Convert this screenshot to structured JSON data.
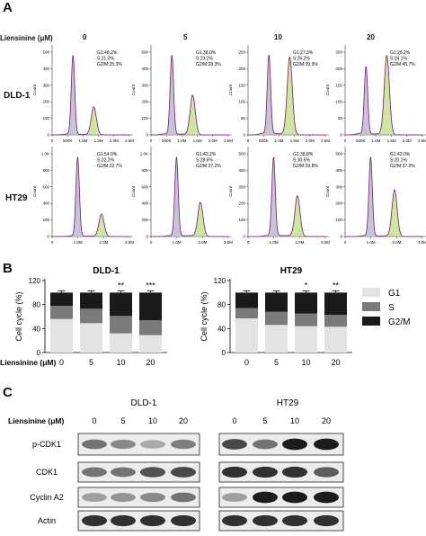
{
  "panel_letters": {
    "a": "A",
    "b": "B",
    "c": "C"
  },
  "treatment_label": "Liensinine (μM)",
  "doses": [
    "0",
    "5",
    "10",
    "20"
  ],
  "panel_a": {
    "cell_lines": [
      "DLD-1",
      "HT29"
    ],
    "y_axis_label": "Count",
    "histograms": [
      {
        "row": 0,
        "col": 0,
        "y_ticks": [
          "0",
          "100",
          "200",
          "300",
          "400",
          "500"
        ],
        "x_ticks": [
          "0",
          "500K",
          "1.0M",
          "1.5M",
          "2.0M",
          "2.5M"
        ],
        "stats": [
          "G1:48.2%",
          "S:21.0%",
          "G2/M:25.3%"
        ]
      },
      {
        "row": 0,
        "col": 1,
        "y_ticks": [
          "0",
          "100",
          "200",
          "300",
          "400",
          "500"
        ],
        "x_ticks": [
          "0",
          "500K",
          "1.0M",
          "1.5M",
          "2.0M",
          "2.5M"
        ],
        "stats": [
          "G1:38.0%",
          "S:23.2%",
          "G2/M:28.3%"
        ]
      },
      {
        "row": 0,
        "col": 2,
        "y_ticks": [
          "0",
          "50",
          "100",
          "150",
          "200",
          "250"
        ],
        "x_ticks": [
          "0",
          "500K",
          "1.0M",
          "1.5M",
          "2.0M",
          "2.5M"
        ],
        "stats": [
          "G1:27.3%",
          "S:26.2%",
          "G2/M:39.9%"
        ]
      },
      {
        "row": 0,
        "col": 3,
        "y_ticks": [
          "0",
          "50",
          "100",
          "150",
          "200",
          "250"
        ],
        "x_ticks": [
          "0",
          "500K",
          "1.0M",
          "1.5M",
          "2.0M",
          "2.5M"
        ],
        "stats": [
          "G1:26.2%",
          "S:24.1%",
          "G2/M:45.7%"
        ]
      },
      {
        "row": 1,
        "col": 0,
        "y_ticks": [
          "0",
          "200",
          "400",
          "600",
          "800",
          "1.0K"
        ],
        "x_ticks": [
          "0",
          "1.0M",
          "2.0M",
          "3.0M"
        ],
        "stats": [
          "G1:54.0%",
          "S:22.2%",
          "G2/M:22.7%"
        ]
      },
      {
        "row": 1,
        "col": 1,
        "y_ticks": [
          "0",
          "200",
          "400",
          "600",
          "800",
          "1.0K"
        ],
        "x_ticks": [
          "0",
          "1.0M",
          "2.0M",
          "3.0M"
        ],
        "stats": [
          "G1:42.2%",
          "S:28.6%",
          "G2/M:27.2%"
        ]
      },
      {
        "row": 1,
        "col": 2,
        "y_ticks": [
          "0",
          "100",
          "200",
          "300",
          "400",
          "500"
        ],
        "x_ticks": [
          "0",
          "1.0M",
          "2.0M",
          "3.0M"
        ],
        "stats": [
          "G1:38.8%",
          "S:30.5%",
          "G2/M:29.8%"
        ]
      },
      {
        "row": 1,
        "col": 3,
        "y_ticks": [
          "0",
          "100",
          "200",
          "300",
          "400",
          "500"
        ],
        "x_ticks": [
          "0",
          "1.0M",
          "2.0M",
          "3.0M"
        ],
        "stats": [
          "G1:42.0%",
          "S:20.1%",
          "G2/M:37.0%"
        ]
      }
    ]
  },
  "chart_data": [
    {
      "type": "bar",
      "title": "DLD-1",
      "xlabel": "Liensinine (μM)",
      "ylabel": "Cell cycle (%)",
      "ylim": [
        0,
        120
      ],
      "yticks": [
        "0",
        "40",
        "80",
        "120"
      ],
      "categories": [
        "0",
        "5",
        "10",
        "20"
      ],
      "stacked": true,
      "series": [
        {
          "name": "G1",
          "values": [
            56,
            49,
            32,
            29
          ]
        },
        {
          "name": "S",
          "values": [
            22,
            24,
            29,
            25
          ]
        },
        {
          "name": "G2/M",
          "values": [
            22,
            27,
            39,
            46
          ]
        }
      ],
      "significance": [
        "",
        "",
        "**",
        "***"
      ]
    },
    {
      "type": "bar",
      "title": "HT29",
      "xlabel": "Liensinine (μM)",
      "ylabel": "Cell cycle (%)",
      "ylim": [
        0,
        120
      ],
      "yticks": [
        "0",
        "40",
        "80",
        "120"
      ],
      "categories": [
        "0",
        "5",
        "10",
        "20"
      ],
      "stacked": true,
      "series": [
        {
          "name": "G1",
          "values": [
            57,
            46,
            44,
            43
          ]
        },
        {
          "name": "S",
          "values": [
            17,
            22,
            21,
            20
          ]
        },
        {
          "name": "G2/M",
          "values": [
            26,
            32,
            35,
            37
          ]
        }
      ],
      "significance": [
        "",
        "",
        "*",
        "**"
      ]
    }
  ],
  "legend": [
    {
      "name": "G1",
      "color": "#e3e3e3"
    },
    {
      "name": "S",
      "color": "#7a7a7a"
    },
    {
      "name": "G2/M",
      "color": "#1a1a1a"
    }
  ],
  "panel_c": {
    "cell_lines": [
      "DLD-1",
      "HT29"
    ],
    "proteins": [
      "p-CDK1",
      "CDK1",
      "Cyclin A2",
      "Actin"
    ],
    "band_intensity": {
      "DLD-1": [
        [
          0.55,
          0.45,
          0.3,
          0.5
        ],
        [
          0.55,
          0.55,
          0.7,
          0.75
        ],
        [
          0.35,
          0.4,
          0.45,
          0.55
        ],
        [
          0.85,
          0.85,
          0.85,
          0.85
        ]
      ],
      "HT29": [
        [
          0.75,
          0.55,
          0.95,
          0.95
        ],
        [
          0.85,
          0.85,
          0.85,
          0.65
        ],
        [
          0.35,
          0.95,
          0.95,
          0.95
        ],
        [
          0.85,
          0.85,
          0.85,
          0.85
        ]
      ]
    }
  },
  "colors": {
    "g1": "#e3e3e3",
    "s": "#7a7a7a",
    "g2m": "#1a1a1a",
    "outline": "#c040b8",
    "g1_fill": "#c8c4d8",
    "s_fill": "#d4d4d4",
    "g2m_fill": "#cfe6a0"
  }
}
